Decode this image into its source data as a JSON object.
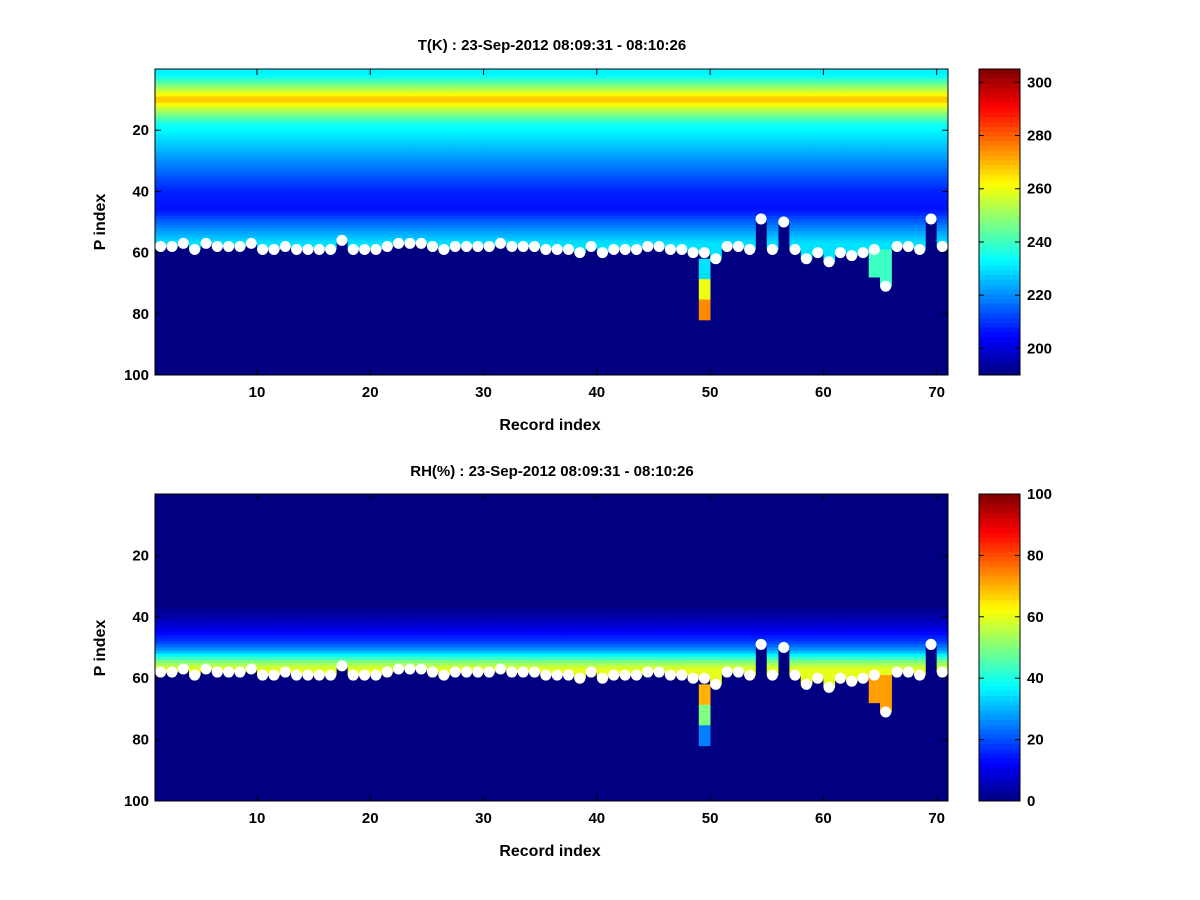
{
  "chart_data": [
    {
      "type": "heatmap",
      "title": "T(K) : 23-Sep-2012 08:09:31 - 08:10:26",
      "xlabel": "Record index",
      "ylabel": "P index",
      "xlim": [
        1,
        71
      ],
      "ylim": [
        0,
        100
      ],
      "y_reversed": true,
      "xticks": [
        10,
        20,
        30,
        40,
        50,
        60,
        70
      ],
      "yticks": [
        20,
        40,
        60,
        80,
        100
      ],
      "colormap": "jet",
      "clim": [
        190,
        305
      ],
      "colorbar_ticks": [
        200,
        220,
        240,
        260,
        280,
        300
      ],
      "background_value": 190,
      "profile": {
        "surface_value": 190,
        "top_value": 232,
        "peak_level": 10,
        "peak_value": 270,
        "levels": [
          [
            2,
            232
          ],
          [
            6,
            250
          ],
          [
            10,
            270
          ],
          [
            13,
            255
          ],
          [
            18,
            235
          ],
          [
            24,
            228
          ],
          [
            32,
            218
          ],
          [
            40,
            208
          ],
          [
            46,
            206
          ],
          [
            52,
            220
          ],
          [
            57,
            230
          ]
        ]
      },
      "surface_markers": {
        "records": [
          1,
          2,
          3,
          4,
          5,
          6,
          7,
          8,
          9,
          10,
          11,
          12,
          13,
          14,
          15,
          16,
          17,
          18,
          19,
          20,
          21,
          22,
          23,
          24,
          25,
          26,
          27,
          28,
          29,
          30,
          31,
          32,
          33,
          34,
          35,
          36,
          37,
          38,
          39,
          40,
          41,
          42,
          43,
          44,
          45,
          46,
          47,
          48,
          49,
          50,
          51,
          52,
          53,
          54,
          55,
          56,
          57,
          58,
          59,
          60,
          61,
          62,
          63,
          64,
          65,
          66,
          67,
          68,
          69,
          70
        ],
        "levels": [
          58,
          58,
          57,
          59,
          57,
          58,
          58,
          58,
          57,
          59,
          59,
          58,
          59,
          59,
          59,
          59,
          56,
          59,
          59,
          59,
          58,
          57,
          57,
          57,
          58,
          59,
          58,
          58,
          58,
          58,
          57,
          58,
          58,
          58,
          59,
          59,
          59,
          60,
          58,
          60,
          59,
          59,
          59,
          58,
          58,
          59,
          59,
          60,
          60,
          62,
          58,
          58,
          59,
          49,
          59,
          50,
          59,
          62,
          60,
          63,
          60,
          61,
          60,
          59,
          71,
          58,
          58,
          59,
          49,
          58
        ]
      },
      "anomalies": [
        {
          "record": 49,
          "from": 62,
          "to": 82,
          "values": [
            230,
            260,
            275
          ]
        },
        {
          "record": 64,
          "from": 59,
          "to": 68,
          "values": [
            240
          ]
        },
        {
          "record": 65,
          "from": 59,
          "to": 71,
          "values": [
            240
          ]
        }
      ]
    },
    {
      "type": "heatmap",
      "title": "RH(%) : 23-Sep-2012 08:09:31 - 08:10:26",
      "xlabel": "Record index",
      "ylabel": "P index",
      "xlim": [
        1,
        71
      ],
      "ylim": [
        0,
        100
      ],
      "y_reversed": true,
      "xticks": [
        10,
        20,
        30,
        40,
        50,
        60,
        70
      ],
      "yticks": [
        20,
        40,
        60,
        80,
        100
      ],
      "colormap": "jet",
      "clim": [
        0,
        100
      ],
      "colorbar_ticks": [
        0,
        20,
        40,
        60,
        80,
        100
      ],
      "background_value": 0,
      "profile": {
        "surface_value": 0,
        "top_value": 0,
        "levels": [
          [
            0,
            0
          ],
          [
            36,
            0
          ],
          [
            40,
            4
          ],
          [
            44,
            10
          ],
          [
            48,
            18
          ],
          [
            51,
            28
          ],
          [
            53,
            40
          ],
          [
            55,
            52
          ],
          [
            57,
            60
          ]
        ]
      },
      "surface_markers": {
        "records": [
          1,
          2,
          3,
          4,
          5,
          6,
          7,
          8,
          9,
          10,
          11,
          12,
          13,
          14,
          15,
          16,
          17,
          18,
          19,
          20,
          21,
          22,
          23,
          24,
          25,
          26,
          27,
          28,
          29,
          30,
          31,
          32,
          33,
          34,
          35,
          36,
          37,
          38,
          39,
          40,
          41,
          42,
          43,
          44,
          45,
          46,
          47,
          48,
          49,
          50,
          51,
          52,
          53,
          54,
          55,
          56,
          57,
          58,
          59,
          60,
          61,
          62,
          63,
          64,
          65,
          66,
          67,
          68,
          69,
          70
        ],
        "levels": [
          58,
          58,
          57,
          59,
          57,
          58,
          58,
          58,
          57,
          59,
          59,
          58,
          59,
          59,
          59,
          59,
          56,
          59,
          59,
          59,
          58,
          57,
          57,
          57,
          58,
          59,
          58,
          58,
          58,
          58,
          57,
          58,
          58,
          58,
          59,
          59,
          59,
          60,
          58,
          60,
          59,
          59,
          59,
          58,
          58,
          59,
          59,
          60,
          60,
          62,
          58,
          58,
          59,
          49,
          59,
          50,
          59,
          62,
          60,
          63,
          60,
          61,
          60,
          59,
          71,
          58,
          58,
          59,
          49,
          58
        ]
      },
      "anomalies": [
        {
          "record": 49,
          "from": 62,
          "to": 82,
          "values": [
            70,
            50,
            25
          ]
        },
        {
          "record": 64,
          "from": 59,
          "to": 68,
          "values": [
            72
          ]
        },
        {
          "record": 65,
          "from": 59,
          "to": 71,
          "values": [
            72
          ]
        }
      ]
    }
  ]
}
